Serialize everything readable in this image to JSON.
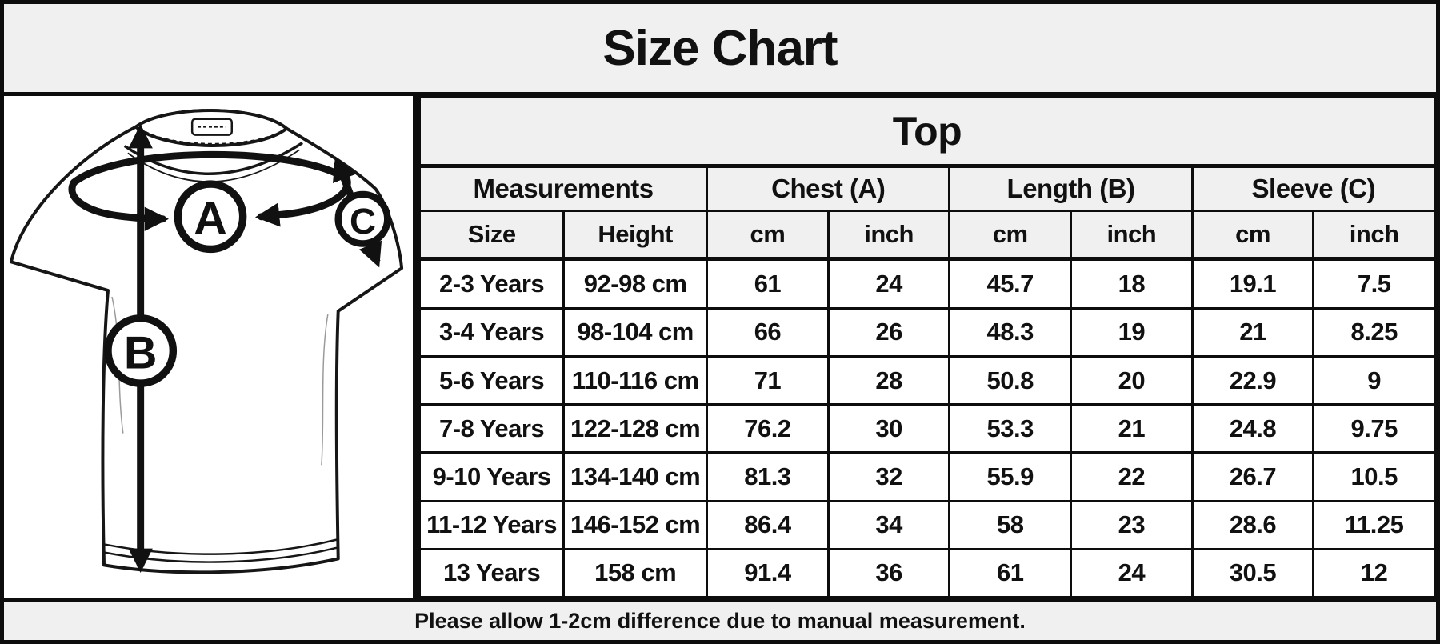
{
  "title": "Size Chart",
  "chart_data": {
    "type": "table",
    "title": "Top",
    "column_groups": [
      {
        "label": "Measurements",
        "span": 2
      },
      {
        "label": "Chest (A)",
        "span": 2
      },
      {
        "label": "Length (B)",
        "span": 2
      },
      {
        "label": "Sleeve (C)",
        "span": 2
      }
    ],
    "subheaders": [
      "Size",
      "Height",
      "cm",
      "inch",
      "cm",
      "inch",
      "cm",
      "inch"
    ],
    "rows": [
      [
        "2-3 Years",
        "92-98 cm",
        "61",
        "24",
        "45.7",
        "18",
        "19.1",
        "7.5"
      ],
      [
        "3-4 Years",
        "98-104 cm",
        "66",
        "26",
        "48.3",
        "19",
        "21",
        "8.25"
      ],
      [
        "5-6 Years",
        "110-116 cm",
        "71",
        "28",
        "50.8",
        "20",
        "22.9",
        "9"
      ],
      [
        "7-8 Years",
        "122-128 cm",
        "76.2",
        "30",
        "53.3",
        "21",
        "24.8",
        "9.75"
      ],
      [
        "9-10 Years",
        "134-140 cm",
        "81.3",
        "32",
        "55.9",
        "22",
        "26.7",
        "10.5"
      ],
      [
        "11-12 Years",
        "146-152 cm",
        "86.4",
        "34",
        "58",
        "23",
        "28.6",
        "11.25"
      ],
      [
        "13 Years",
        "158 cm",
        "91.4",
        "36",
        "61",
        "24",
        "30.5",
        "12"
      ]
    ],
    "note": "Please allow 1-2cm difference due to manual measurement."
  },
  "diagram": {
    "subject": "t-shirt measurement guide",
    "markers": [
      {
        "label": "A",
        "measures": "Chest"
      },
      {
        "label": "B",
        "measures": "Length"
      },
      {
        "label": "C",
        "measures": "Sleeve"
      }
    ]
  },
  "colors": {
    "header_background": "#f0f0f0",
    "cell_background": "#ffffff",
    "border": "#0d0d0d",
    "text": "#111111"
  }
}
